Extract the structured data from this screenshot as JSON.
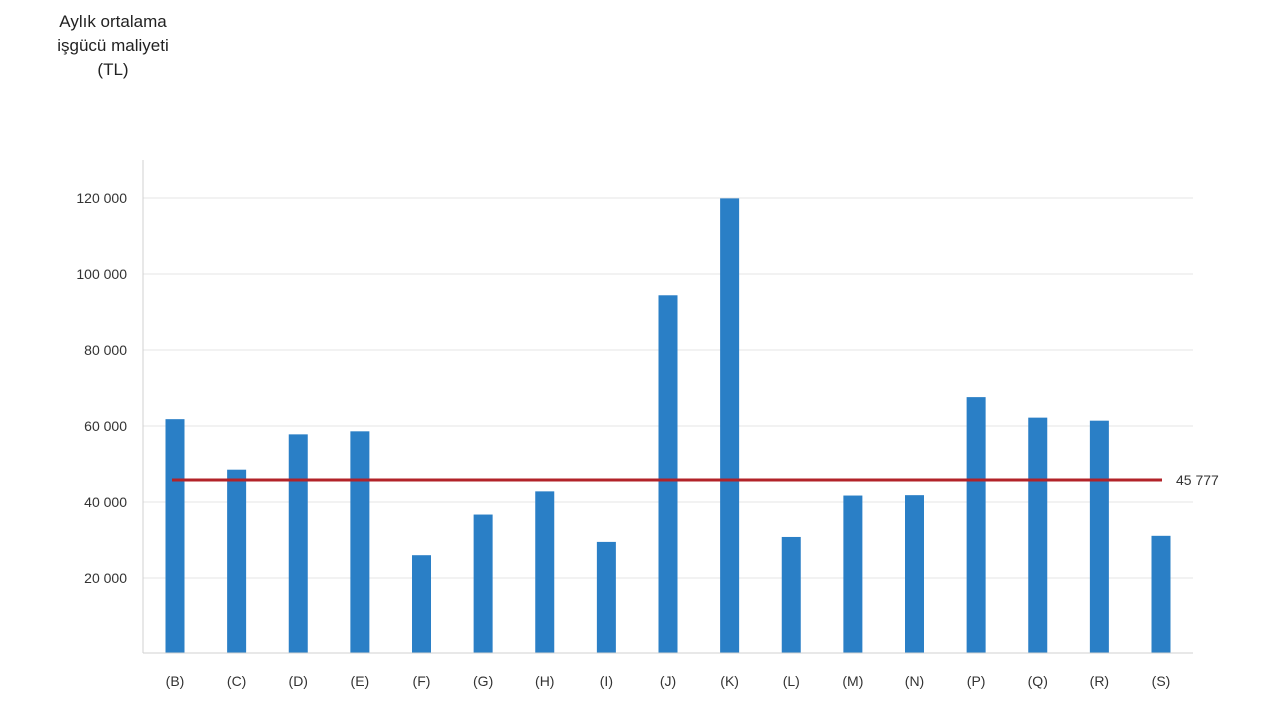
{
  "chart_data": {
    "type": "bar",
    "ylabel_lines": [
      "Aylık ortalama",
      "işgücü maliyeti",
      "(TL)"
    ],
    "categories": [
      "(B)",
      "(C)",
      "(D)",
      "(E)",
      "(F)",
      "(G)",
      "(H)",
      "(I)",
      "(J)",
      "(K)",
      "(L)",
      "(M)",
      "(N)",
      "(P)",
      "(Q)",
      "(R)",
      "(S)"
    ],
    "values": [
      61800,
      48500,
      57800,
      58600,
      26000,
      36700,
      42800,
      29500,
      94400,
      119900,
      30800,
      41700,
      41800,
      67600,
      62200,
      61400,
      31100
    ],
    "yticks": [
      20000,
      40000,
      60000,
      80000,
      100000,
      120000
    ],
    "ytick_labels": [
      "20 000",
      "40 000",
      "60 000",
      "80 000",
      "100 000",
      "120 000"
    ],
    "ylim": [
      0,
      130000
    ],
    "reference_line": {
      "value": 45777,
      "label": "45 777"
    },
    "grid": true,
    "colors": {
      "bar": "#2a7fc6",
      "reference_line": "#b22329",
      "grid": "#e6e6e6",
      "axis": "#d0d0d0"
    }
  }
}
